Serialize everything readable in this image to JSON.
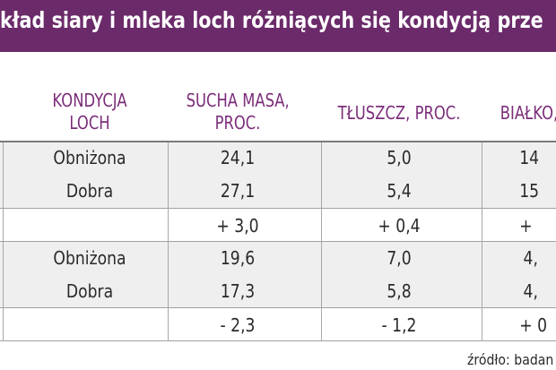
{
  "title": "kład siary i mleka loch różniących się kondycją prze",
  "headers": {
    "kondycja": [
      "KONDYCJA",
      "LOCH"
    ],
    "sucha_masa": [
      "SUCHA MASA,",
      "PROC."
    ],
    "tluszcz": "TŁUSZCZ, PROC.",
    "bialko": "BIAŁKO,"
  },
  "rows": [
    {
      "kondycja": "Obniżona",
      "sucha_masa": "24,1",
      "tluszcz": "5,0",
      "bialko": "14"
    },
    {
      "kondycja": "Dobra",
      "sucha_masa": "27,1",
      "tluszcz": "5,4",
      "bialko": "15"
    },
    {
      "kondycja": "",
      "sucha_masa": "+ 3,0",
      "tluszcz": "+ 0,4",
      "bialko": "+"
    },
    {
      "kondycja": "Obniżona",
      "sucha_masa": "19,6",
      "tluszcz": "7,0",
      "bialko": "4,"
    },
    {
      "kondycja": "Dobra",
      "sucha_masa": "17,3",
      "tluszcz": "5,8",
      "bialko": "4,"
    },
    {
      "kondycja": "",
      "sucha_masa": "- 2,3",
      "tluszcz": "- 1,2",
      "bialko": "+ 0"
    }
  ],
  "source": "źródło: badan",
  "colors": {
    "title_bg": "#6b2a6a",
    "header_text": "#7b2d7a",
    "shade": "#efefef"
  }
}
